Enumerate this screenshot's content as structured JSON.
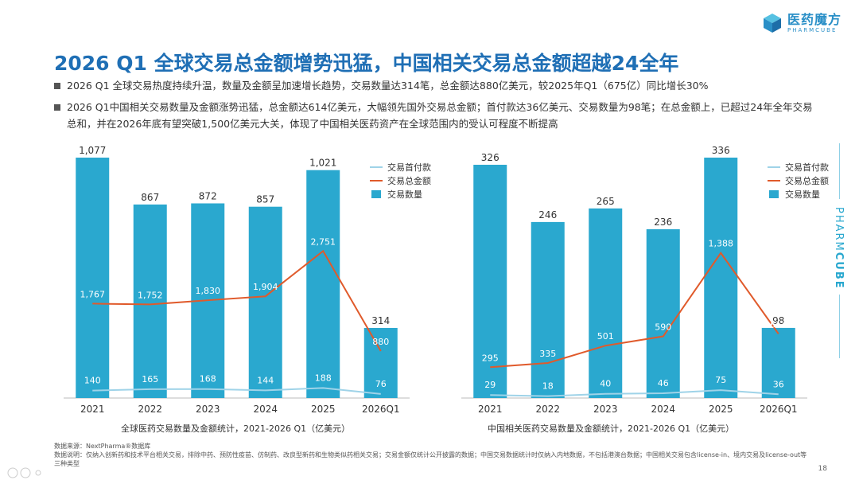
{
  "logo": {
    "cn": "医药魔方",
    "en": "PHARMCUBE"
  },
  "title": "2026 Q1 全球交易总金额增势迅猛，中国相关交易总金额超越24全年",
  "bullets": [
    "2026 Q1 全球交易热度持续升温，数量及金额呈加速增长趋势，交易数量达314笔，总金额达880亿美元，较2025年Q1（675亿）同比增长30%",
    "2026 Q1中国相关交易数量及金额涨势迅猛，总金额达614亿美元，大幅领先国外交易总金额；首付款达36亿美元、交易数量为98笔；在总金额上，已超过24年全年交易总和，并在2026年底有望突破1,500亿美元大关，体现了中国相关医药资产在全球范围内的受认可程度不断提高"
  ],
  "side_brand_prefix": "PHARM",
  "side_brand_suffix": "CUBE",
  "colors": {
    "bar": "#2aa8cf",
    "total": "#e05a2b",
    "upfront": "#9fd3e8",
    "title": "#1f6fb5"
  },
  "chart_data": [
    {
      "type": "bar",
      "categories": [
        "2021",
        "2022",
        "2023",
        "2024",
        "2025",
        "2026Q1"
      ],
      "series": [
        {
          "name": "交易数量",
          "type": "bar",
          "values": [
            1077,
            867,
            872,
            857,
            1021,
            314
          ]
        },
        {
          "name": "交易总金额",
          "type": "line",
          "values": [
            1767,
            1752,
            1830,
            1904,
            2751,
            880
          ]
        },
        {
          "name": "交易首付款",
          "type": "line",
          "values": [
            140,
            165,
            168,
            144,
            188,
            76
          ]
        }
      ],
      "bar_max": 1077,
      "line_range": [
        0,
        4500
      ],
      "legend": [
        "交易首付款",
        "交易总金额",
        "交易数量"
      ],
      "legend_position": "top-right",
      "caption": "全球医药交易数量及金额统计，2021-2026 Q1（亿美元）"
    },
    {
      "type": "bar",
      "categories": [
        "2021",
        "2022",
        "2023",
        "2024",
        "2025",
        "2026Q1"
      ],
      "series": [
        {
          "name": "交易数量",
          "type": "bar",
          "values": [
            326,
            246,
            265,
            236,
            336,
            98
          ]
        },
        {
          "name": "交易总金额",
          "type": "line",
          "values": [
            295,
            335,
            501,
            590,
            1388,
            614
          ]
        },
        {
          "name": "交易首付款",
          "type": "line",
          "values": [
            29,
            18,
            40,
            46,
            75,
            36
          ]
        }
      ],
      "bar_max": 336,
      "line_range": [
        0,
        2300
      ],
      "legend": [
        "交易首付款",
        "交易总金额",
        "交易数量"
      ],
      "legend_position": "top-right",
      "caption": "中国相关医药交易数量及金额统计，2021-2026 Q1（亿美元）"
    }
  ],
  "notes": [
    "数据来源：NextPharma®数据库",
    "数据说明：仅纳入创新药和技术平台相关交易，排除中药、预防性疫苗、仿制药、改良型新药和生物类似药相关交易；交易金额仅统计公开披露的数据；中国交易数据统计时仅纳入内地数据，不包括港澳台数据；中国相关交易包含license-in、境内交易及license-out等三种类型"
  ],
  "page_number": "18"
}
